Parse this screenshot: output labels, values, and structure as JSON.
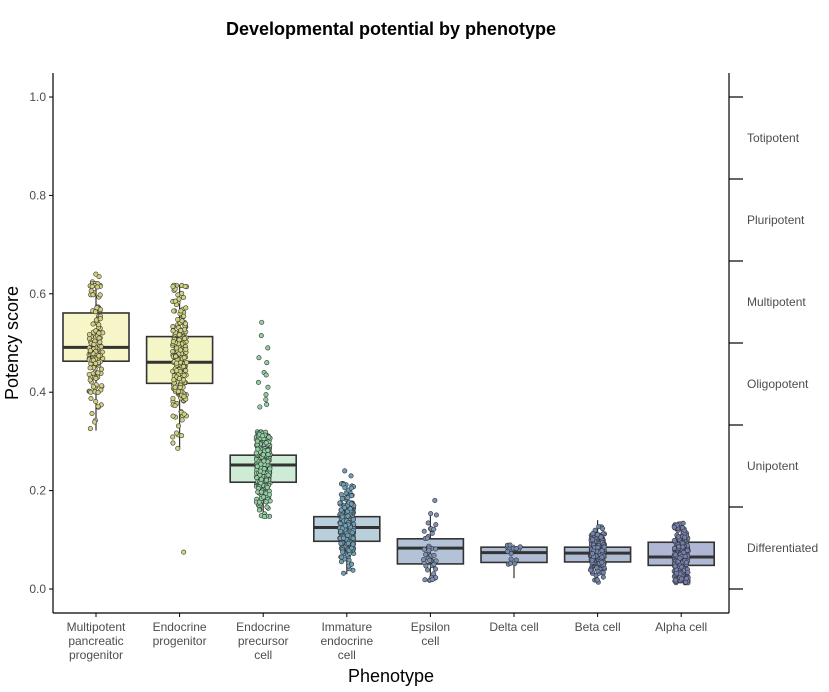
{
  "chart_data": {
    "type": "box",
    "title": "Developmental potential by phenotype",
    "xlabel": "Phenotype",
    "ylabel": "Potency score",
    "ylim": [
      0,
      1
    ],
    "yticks": [
      "0.0",
      "0.2",
      "0.4",
      "0.6",
      "0.8",
      "1.0"
    ],
    "categories": [
      [
        "Multipotent",
        "pancreatic",
        "progenitor"
      ],
      [
        "Endocrine",
        "progenitor"
      ],
      [
        "Endocrine",
        "precursor",
        "cell"
      ],
      [
        "Immature",
        "endocrine",
        "cell"
      ],
      [
        "Epsilon",
        "cell"
      ],
      [
        "Delta cell"
      ],
      [
        "Beta cell"
      ],
      [
        "Alpha cell"
      ]
    ],
    "boxes": [
      {
        "q1": 0.463,
        "median": 0.491,
        "q3": 0.561,
        "whisker_low": 0.322,
        "whisker_high": 0.625,
        "fill": "#f6f6c8",
        "point_color": "#d3d083",
        "n": 140,
        "outliers": [
          0.635,
          0.64
        ]
      },
      {
        "q1": 0.418,
        "median": 0.461,
        "q3": 0.513,
        "whisker_low": 0.285,
        "whisker_high": 0.618,
        "fill": "#f4f6c8",
        "point_color": "#d0d47f",
        "n": 230,
        "outliers": [
          0.075
        ]
      },
      {
        "q1": 0.217,
        "median": 0.252,
        "q3": 0.272,
        "whisker_low": 0.145,
        "whisker_high": 0.32,
        "fill": "#cdebd5",
        "point_color": "#8fcfa0",
        "n": 300,
        "outliers": [
          0.542,
          0.515,
          0.49,
          0.47,
          0.46,
          0.44,
          0.435,
          0.42,
          0.41,
          0.395,
          0.385,
          0.375,
          0.37
        ]
      },
      {
        "q1": 0.097,
        "median": 0.125,
        "q3": 0.147,
        "whisker_low": 0.03,
        "whisker_high": 0.215,
        "fill": "#b9cfdb",
        "point_color": "#6d9fb8",
        "n": 260,
        "outliers": [
          0.24,
          0.23
        ]
      },
      {
        "q1": 0.051,
        "median": 0.083,
        "q3": 0.102,
        "whisker_low": 0.015,
        "whisker_high": 0.155,
        "fill": "#b3c2d6",
        "point_color": "#7d92b5",
        "n": 45,
        "outliers": [
          0.18
        ]
      },
      {
        "q1": 0.054,
        "median": 0.074,
        "q3": 0.085,
        "whisker_low": 0.022,
        "whisker_high": 0.09,
        "fill": "#b0bcd4",
        "point_color": "#7589b0",
        "n": 18,
        "outliers": []
      },
      {
        "q1": 0.055,
        "median": 0.073,
        "q3": 0.085,
        "whisker_low": 0.012,
        "whisker_high": 0.14,
        "fill": "#b0bcd5",
        "point_color": "#7286b2",
        "n": 260,
        "outliers": []
      },
      {
        "q1": 0.048,
        "median": 0.065,
        "q3": 0.095,
        "whisker_low": 0.012,
        "whisker_high": 0.135,
        "fill": "#b0b7d4",
        "point_color": "#7480b0",
        "n": 240,
        "outliers": []
      }
    ],
    "potency_levels": [
      "Totipotent",
      "Pluripotent",
      "Multipotent",
      "Oligopotent",
      "Unipotent",
      "Differentiated"
    ],
    "grid": false,
    "legend": "none"
  }
}
